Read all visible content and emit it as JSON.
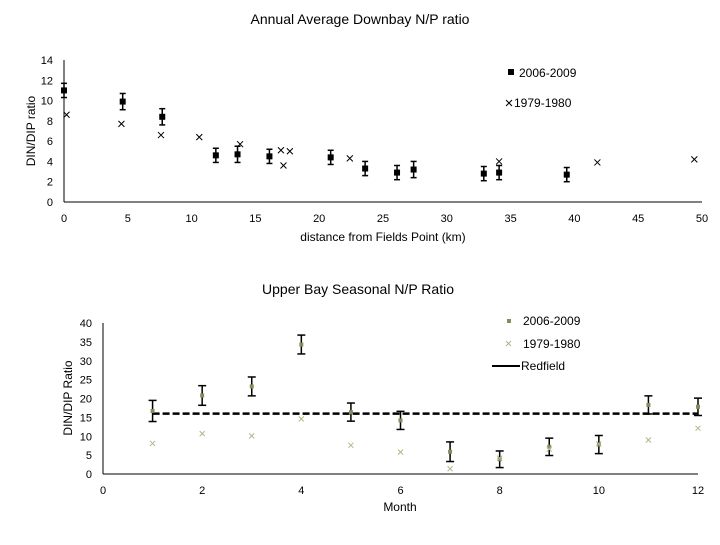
{
  "chart_data": [
    {
      "type": "scatter",
      "title": "Annual Average Downbay N/P ratio",
      "xlabel": "distance from Fields Point (km)",
      "ylabel": "DIN/DIP ratio",
      "xlim": [
        0,
        50
      ],
      "ylim": [
        0,
        14
      ],
      "xticks": [
        "0",
        "5",
        "10",
        "15",
        "20",
        "25",
        "30",
        "35",
        "40",
        "45",
        "50"
      ],
      "yticks": [
        "0",
        "2",
        "4",
        "6",
        "8",
        "10",
        "12",
        "14"
      ],
      "legend_position": "top-right",
      "series": [
        {
          "name": "2006-2009",
          "marker": "square",
          "color": "#000000",
          "points": [
            {
              "x": 0,
              "y": 11.0,
              "err": 0.7
            },
            {
              "x": 4.6,
              "y": 9.9,
              "err": 0.8
            },
            {
              "x": 7.7,
              "y": 8.4,
              "err": 0.8
            },
            {
              "x": 11.9,
              "y": 4.6,
              "err": 0.7
            },
            {
              "x": 13.6,
              "y": 4.7,
              "err": 0.8
            },
            {
              "x": 16.1,
              "y": 4.5,
              "err": 0.7
            },
            {
              "x": 20.9,
              "y": 4.4,
              "err": 0.7
            },
            {
              "x": 23.6,
              "y": 3.3,
              "err": 0.7
            },
            {
              "x": 26.1,
              "y": 2.9,
              "err": 0.7
            },
            {
              "x": 27.4,
              "y": 3.2,
              "err": 0.8
            },
            {
              "x": 32.9,
              "y": 2.8,
              "err": 0.7
            },
            {
              "x": 34.1,
              "y": 2.9,
              "err": 0.7
            },
            {
              "x": 39.4,
              "y": 2.7,
              "err": 0.7
            }
          ]
        },
        {
          "name": "1979-1980",
          "marker": "x",
          "color": "#000000",
          "points": [
            {
              "x": 0.2,
              "y": 8.6
            },
            {
              "x": 4.5,
              "y": 7.7
            },
            {
              "x": 7.6,
              "y": 6.6
            },
            {
              "x": 10.6,
              "y": 6.4
            },
            {
              "x": 13.8,
              "y": 5.7
            },
            {
              "x": 17.0,
              "y": 5.1
            },
            {
              "x": 17.7,
              "y": 5.0
            },
            {
              "x": 17.2,
              "y": 3.6
            },
            {
              "x": 22.4,
              "y": 4.3
            },
            {
              "x": 34.1,
              "y": 4.0
            },
            {
              "x": 41.8,
              "y": 3.9
            },
            {
              "x": 49.4,
              "y": 4.2
            }
          ]
        }
      ]
    },
    {
      "type": "scatter",
      "title": "Upper Bay Seasonal N/P Ratio",
      "xlabel": "Month",
      "ylabel": "DIN/DIP Ratio",
      "xlim": [
        0,
        12
      ],
      "ylim": [
        0,
        40
      ],
      "xticks": [
        "0",
        "2",
        "4",
        "6",
        "8",
        "10",
        "12"
      ],
      "yticks": [
        "0",
        "5",
        "10",
        "15",
        "20",
        "25",
        "30",
        "35",
        "40"
      ],
      "legend_position": "top-right",
      "reference_line": {
        "name": "Redfield",
        "value": 16,
        "style": "dashed",
        "color": "#000000"
      },
      "series": [
        {
          "name": "2006-2009",
          "marker": "square",
          "color": "#8a8a5c",
          "points": [
            {
              "x": 1,
              "y": 16.7,
              "err": 2.8
            },
            {
              "x": 2,
              "y": 20.8,
              "err": 2.6
            },
            {
              "x": 3,
              "y": 23.2,
              "err": 2.5
            },
            {
              "x": 4,
              "y": 34.3,
              "err": 2.5
            },
            {
              "x": 5,
              "y": 16.4,
              "err": 2.4
            },
            {
              "x": 6,
              "y": 14.2,
              "err": 2.4
            },
            {
              "x": 7,
              "y": 5.9,
              "err": 2.6
            },
            {
              "x": 8,
              "y": 3.9,
              "err": 2.2
            },
            {
              "x": 9,
              "y": 7.2,
              "err": 2.3
            },
            {
              "x": 10,
              "y": 7.8,
              "err": 2.4
            },
            {
              "x": 11,
              "y": 18.3,
              "err": 2.4
            },
            {
              "x": 12,
              "y": 17.8,
              "err": 2.3
            }
          ]
        },
        {
          "name": "1979-1980",
          "marker": "x",
          "color": "#b5b58a",
          "points": [
            {
              "x": 1,
              "y": 8.1
            },
            {
              "x": 2,
              "y": 10.7
            },
            {
              "x": 3,
              "y": 10.1
            },
            {
              "x": 4,
              "y": 14.6
            },
            {
              "x": 5,
              "y": 7.6
            },
            {
              "x": 6,
              "y": 5.8
            },
            {
              "x": 7,
              "y": 1.4
            },
            {
              "x": 8,
              "y": 4.2
            },
            {
              "x": 9,
              "y": 6.6
            },
            {
              "x": 10,
              "y": 8.0
            },
            {
              "x": 11,
              "y": 9.0
            },
            {
              "x": 12,
              "y": 12.1
            }
          ]
        }
      ]
    }
  ]
}
